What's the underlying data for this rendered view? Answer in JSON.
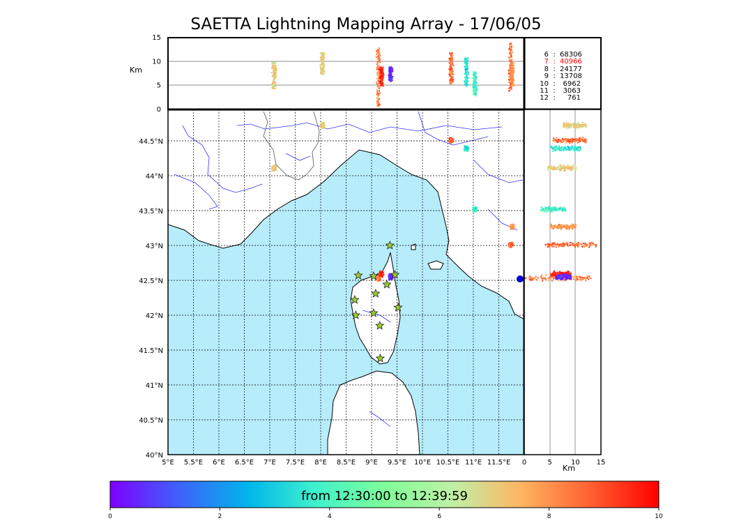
{
  "title": "SAETTA Lightning Mapping Array - 17/06/05",
  "colorbar": {
    "caption": "from 12:30:00 to 12:39:59",
    "ticks": [
      "0",
      "2",
      "4",
      "6",
      "8",
      "10"
    ],
    "colors": [
      "#7f00ff",
      "#3f61fa",
      "#00b5eb",
      "#3ff2cc",
      "#7ffe99",
      "#bff0a5",
      "#ffb460",
      "#ff6030",
      "#ff0000"
    ]
  },
  "hour_counts": [
    {
      "hour": "6",
      "count": "68306",
      "color": "#000000"
    },
    {
      "hour": "7",
      "count": "40966",
      "color": "#ff0000"
    },
    {
      "hour": "8",
      "count": "24177",
      "color": "#000000"
    },
    {
      "hour": "9",
      "count": "13708",
      "color": "#000000"
    },
    {
      "hour": "10",
      "count": "6962",
      "color": "#000000"
    },
    {
      "hour": "11",
      "count": "3063",
      "color": "#000000"
    },
    {
      "hour": "12",
      "count": "761",
      "color": "#000000"
    }
  ],
  "axes": {
    "altitude_label": "Km",
    "altitude_ticks": [
      "0",
      "5",
      "10",
      "15"
    ],
    "lon_ticks": [
      "5°E",
      "5.5°E",
      "6°E",
      "6.5°E",
      "7°E",
      "7.5°E",
      "8°E",
      "8.5°E",
      "9°E",
      "9.5°E",
      "10°E",
      "10.5°E",
      "11°E",
      "11.5°E"
    ],
    "lat_ticks": [
      "40°N",
      "40.5°N",
      "41°N",
      "41.5°N",
      "42°N",
      "42.5°N",
      "43°N",
      "43.5°N",
      "44°N",
      "44.5°N"
    ],
    "side_ticks": [
      "0",
      "5",
      "10",
      "15"
    ],
    "side_label": "Km"
  },
  "chart_data": {
    "type": "scatter",
    "title": "SAETTA Lightning Mapping Array - 17/06/05",
    "x_range": [
      5.0,
      12.0
    ],
    "y_range": [
      40.0,
      44.95
    ],
    "alt_range": [
      0,
      15
    ],
    "color_scale": "minutes after 12:30:00",
    "color_range": [
      0,
      10
    ],
    "grid": true,
    "clusters": [
      {
        "lon": 7.07,
        "lat": 44.12,
        "alt": [
          4.5,
          10
        ],
        "time": 7.0
      },
      {
        "lon": 8.02,
        "lat": 44.73,
        "alt": [
          7.5,
          12
        ],
        "time": 7.0
      },
      {
        "lon": 9.12,
        "lat": 42.54,
        "alt": [
          0,
          13
        ],
        "time": 8.3
      },
      {
        "lon": 9.18,
        "lat": 42.6,
        "alt": [
          5,
          9
        ],
        "time": 9.5
      },
      {
        "lon": 9.36,
        "lat": 42.56,
        "alt": [
          6,
          9
        ],
        "time": 0.5
      },
      {
        "lon": 10.55,
        "lat": 44.52,
        "alt": [
          5.5,
          12
        ],
        "time": 8.6
      },
      {
        "lon": 10.85,
        "lat": 44.4,
        "alt": [
          5,
          11
        ],
        "time": 3.5
      },
      {
        "lon": 11.02,
        "lat": 43.53,
        "alt": [
          3,
          8
        ],
        "time": 4.0
      },
      {
        "lon": 11.72,
        "lat": 43.02,
        "alt": [
          4,
          14
        ],
        "time": 8.6
      },
      {
        "lon": 11.75,
        "lat": 43.28,
        "alt": [
          5,
          10
        ],
        "time": 8.0
      }
    ],
    "stations": [
      {
        "lon": 9.36,
        "lat": 43.0
      },
      {
        "lon": 8.74,
        "lat": 42.57
      },
      {
        "lon": 9.46,
        "lat": 42.58
      },
      {
        "lon": 9.04,
        "lat": 42.56
      },
      {
        "lon": 9.3,
        "lat": 42.44
      },
      {
        "lon": 9.08,
        "lat": 42.31
      },
      {
        "lon": 8.67,
        "lat": 42.22
      },
      {
        "lon": 9.52,
        "lat": 42.11
      },
      {
        "lon": 9.04,
        "lat": 42.03
      },
      {
        "lon": 8.69,
        "lat": 42.0
      },
      {
        "lon": 9.16,
        "lat": 41.85
      },
      {
        "lon": 9.17,
        "lat": 41.38
      }
    ]
  }
}
